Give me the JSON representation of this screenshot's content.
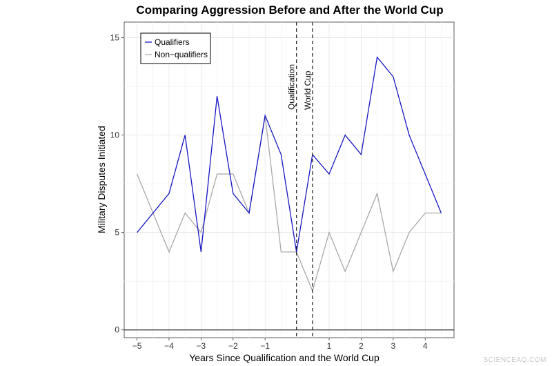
{
  "chart_data": {
    "type": "line",
    "title": "Comparing Aggression Before and After the World Cup",
    "xlabel": "Years Since Qualification and the World Cup",
    "ylabel": "Military Disputes Initiated",
    "xlim": [
      -5.4,
      4.9
    ],
    "ylim": [
      -0.4,
      15.8
    ],
    "x_ticks": [
      {
        "value": -5,
        "label": "−5"
      },
      {
        "value": -4,
        "label": "−4"
      },
      {
        "value": -3,
        "label": "−3"
      },
      {
        "value": -2,
        "label": "−2"
      },
      {
        "value": -1,
        "label": "−1"
      },
      {
        "value": 1,
        "label": "1"
      },
      {
        "value": 2,
        "label": "2"
      },
      {
        "value": 3,
        "label": "3"
      },
      {
        "value": 4,
        "label": "4"
      }
    ],
    "y_ticks": [
      {
        "value": 0,
        "label": "0"
      },
      {
        "value": 5,
        "label": "5"
      },
      {
        "value": 10,
        "label": "10"
      },
      {
        "value": 15,
        "label": "15"
      }
    ],
    "grid": true,
    "legend_position": "top-left",
    "series": [
      {
        "name": "Qualifiers",
        "color": "#1515c2",
        "x": [
          -5,
          -4,
          -3.5,
          -3,
          -2.5,
          -2,
          -1.5,
          -1,
          -0.5,
          -0.02,
          0.48,
          1,
          1.5,
          2,
          2.5,
          3,
          3.5,
          4,
          4.5
        ],
        "y": [
          5,
          7,
          10,
          4,
          12,
          7,
          6,
          11,
          9,
          4,
          9,
          8,
          10,
          9,
          14,
          13,
          10,
          8,
          6
        ]
      },
      {
        "name": "Non−qualifiers",
        "color": "#a8a8a8",
        "x": [
          -5,
          -4,
          -3.5,
          -3,
          -2.5,
          -2,
          -1.5,
          -1,
          -0.5,
          -0.02,
          0.48,
          1,
          1.5,
          2,
          2.5,
          3,
          3.5,
          4,
          4.5
        ],
        "y": [
          8,
          4,
          6,
          5,
          8,
          8,
          6,
          11,
          4,
          4,
          2,
          5,
          3,
          5,
          7,
          3,
          5,
          6,
          6
        ]
      }
    ],
    "reference_lines": [
      {
        "x": -0.02,
        "label": "Qualification"
      },
      {
        "x": 0.48,
        "label": "World Cup"
      }
    ]
  },
  "watermark": "SCIENCEAQ.COM"
}
